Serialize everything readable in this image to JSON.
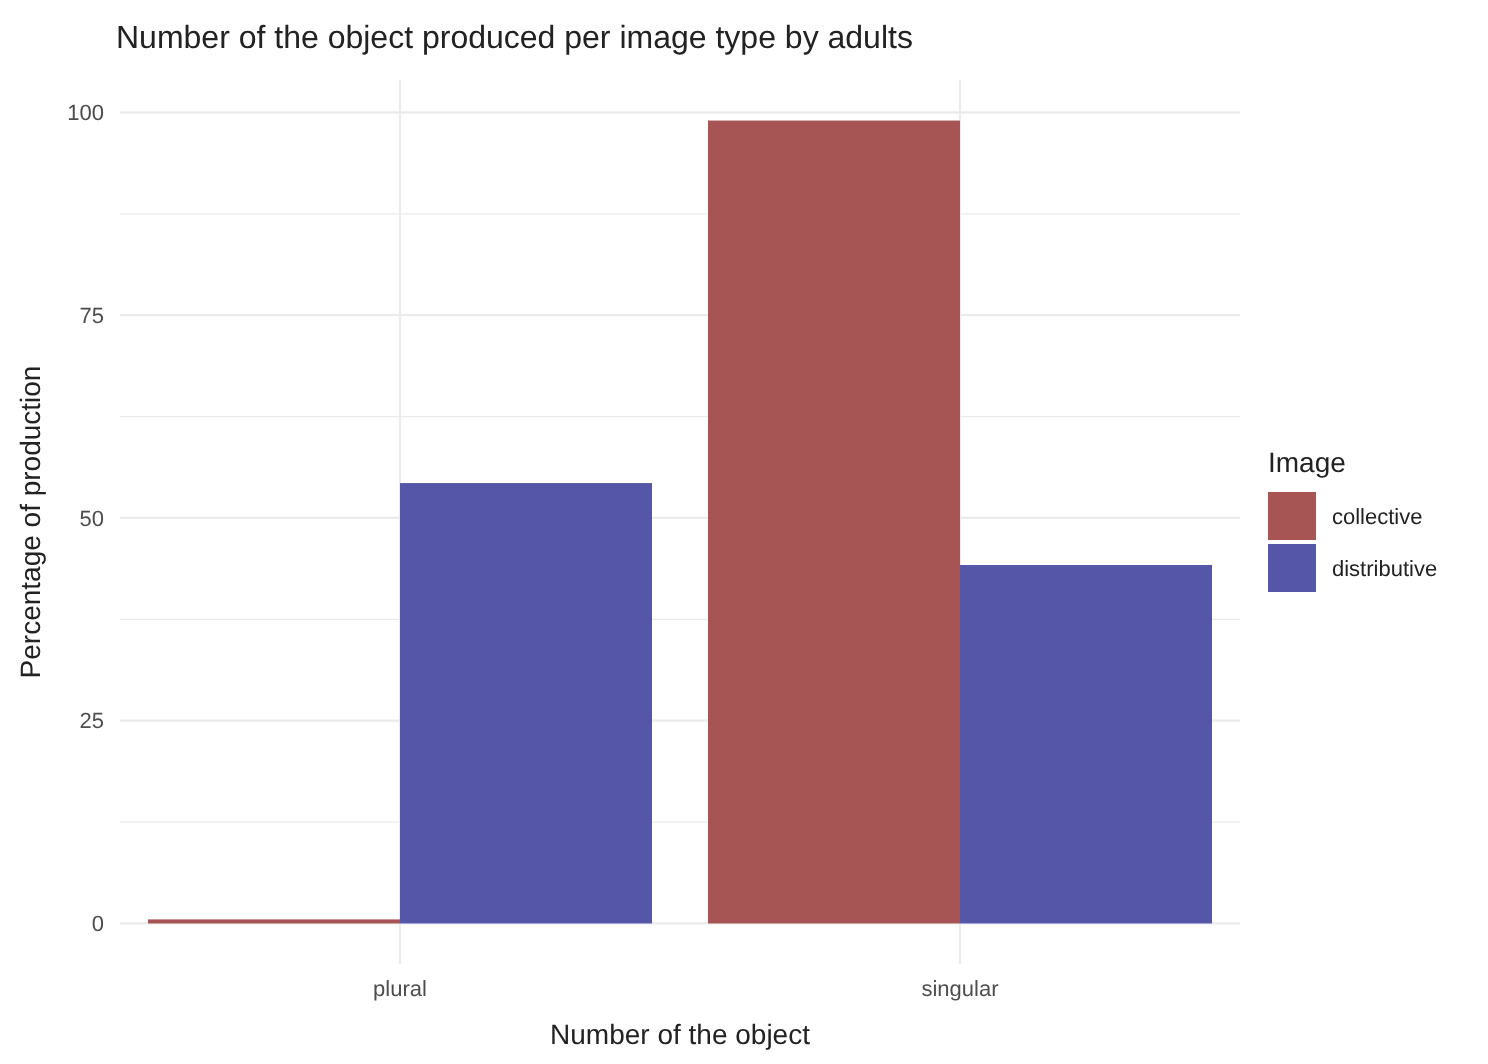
{
  "chart_data": {
    "type": "bar",
    "title": "Number of the object produced per image type by adults",
    "xlabel": "Number of the object",
    "ylabel": "Percentage of production",
    "legend_title": "Image",
    "categories": [
      "plural",
      "singular"
    ],
    "series": [
      {
        "name": "collective",
        "color": "#a65454",
        "values": [
          0.5,
          99
        ]
      },
      {
        "name": "distributive",
        "color": "#5556a8",
        "values": [
          54.3,
          44.2
        ]
      }
    ],
    "ylim": [
      -5,
      104
    ],
    "yticks": [
      0,
      {
        "value": 12.5,
        "label": null
      },
      25,
      {
        "value": 37.5,
        "label": null
      },
      50,
      {
        "value": 62.5,
        "label": null
      },
      75,
      {
        "value": 87.5,
        "label": null
      },
      100
    ],
    "grid": true,
    "legend": "right"
  }
}
